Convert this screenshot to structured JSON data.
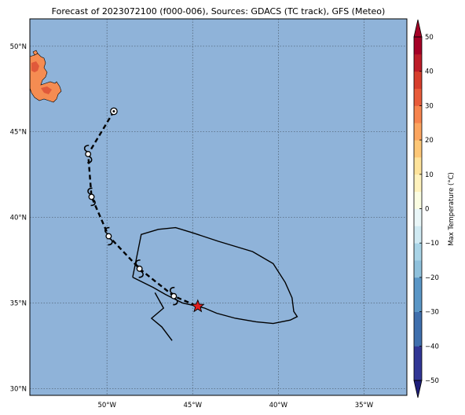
{
  "map": {
    "title": "Forecast of 2023072100 (f000-006), Sources: GDACS (TC track), GFS (Meteo)",
    "lat_ticks": [
      {
        "value": 50,
        "label": "50°N"
      },
      {
        "value": 45,
        "label": "45°N"
      },
      {
        "value": 40,
        "label": "40°N"
      },
      {
        "value": 35,
        "label": "35°N"
      },
      {
        "value": 30,
        "label": "30°N"
      }
    ],
    "lon_ticks": [
      {
        "value": -50,
        "label": "50°W"
      },
      {
        "value": -45,
        "label": "45°W"
      },
      {
        "value": -40,
        "label": "40°W"
      },
      {
        "value": -35,
        "label": "35°W"
      }
    ],
    "extent": {
      "lon_min": -54.5,
      "lon_max": -32.5,
      "lat_min": 29.6,
      "lat_max": 51.6
    },
    "colors": {
      "ocean": "#8fb3d9",
      "land_warm": "#f58c52",
      "land_hot": "#e0593a"
    },
    "track_points": [
      {
        "lon": -49.6,
        "lat": 46.2,
        "symbol": "circle"
      },
      {
        "lon": -51.1,
        "lat": 43.7,
        "symbol": "cyclone"
      },
      {
        "lon": -50.9,
        "lat": 41.2,
        "symbol": "cyclone"
      },
      {
        "lon": -49.9,
        "lat": 38.9,
        "symbol": "cyclone"
      },
      {
        "lon": -48.1,
        "lat": 37.0,
        "symbol": "cyclone"
      },
      {
        "lon": -46.1,
        "lat": 35.4,
        "symbol": "cyclone"
      },
      {
        "lon": -44.7,
        "lat": 34.8,
        "symbol": "star"
      }
    ],
    "forecast_area": [
      [
        -48.5,
        36.5
      ],
      [
        -48.0,
        39.0
      ],
      [
        -47.0,
        39.3
      ],
      [
        -46.0,
        39.4
      ],
      [
        -45.0,
        39.1
      ],
      [
        -43.5,
        38.6
      ],
      [
        -41.5,
        38.0
      ],
      [
        -40.3,
        37.3
      ],
      [
        -39.6,
        36.2
      ],
      [
        -39.2,
        35.3
      ],
      [
        -39.1,
        34.5
      ],
      [
        -38.9,
        34.2
      ],
      [
        -39.3,
        34.0
      ],
      [
        -40.3,
        33.8
      ],
      [
        -41.3,
        33.9
      ],
      [
        -42.5,
        34.1
      ],
      [
        -43.6,
        34.4
      ],
      [
        -44.3,
        34.7
      ],
      [
        -44.7,
        34.8
      ],
      [
        -45.6,
        35.0
      ],
      [
        -46.6,
        35.5
      ],
      [
        -47.3,
        35.9
      ],
      [
        -48.5,
        36.5
      ]
    ],
    "tail": [
      [
        -47.2,
        35.6
      ],
      [
        -46.7,
        34.7
      ],
      [
        -47.4,
        34.1
      ],
      [
        -46.8,
        33.6
      ],
      [
        -46.2,
        32.8
      ]
    ],
    "colorbar": {
      "label": "Max Temperature (°C)",
      "ticks": [
        {
          "value": 50,
          "label": "50"
        },
        {
          "value": 40,
          "label": "40"
        },
        {
          "value": 30,
          "label": "30"
        },
        {
          "value": 20,
          "label": "20"
        },
        {
          "value": 10,
          "label": "10"
        },
        {
          "value": 0,
          "label": "0"
        },
        {
          "value": -10,
          "label": "−10"
        },
        {
          "value": -20,
          "label": "−20"
        },
        {
          "value": -30,
          "label": "−30"
        },
        {
          "value": -40,
          "label": "−40"
        },
        {
          "value": -50,
          "label": "−50"
        }
      ],
      "bands": [
        {
          "from": -50,
          "to": -45,
          "color": "#313695"
        },
        {
          "from": -45,
          "to": -40,
          "color": "#313695"
        },
        {
          "from": -40,
          "to": -35,
          "color": "#3f6fad"
        },
        {
          "from": -35,
          "to": -30,
          "color": "#3f6fad"
        },
        {
          "from": -30,
          "to": -25,
          "color": "#5a96c6"
        },
        {
          "from": -25,
          "to": -20,
          "color": "#5a96c6"
        },
        {
          "from": -20,
          "to": -15,
          "color": "#8fc1dc"
        },
        {
          "from": -15,
          "to": -10,
          "color": "#a9d4e7"
        },
        {
          "from": -10,
          "to": -5,
          "color": "#d0eaf3"
        },
        {
          "from": -5,
          "to": 0,
          "color": "#e9f6f8"
        },
        {
          "from": 0,
          "to": 5,
          "color": "#fbfde2"
        },
        {
          "from": 5,
          "to": 10,
          "color": "#fff2bd"
        },
        {
          "from": 10,
          "to": 15,
          "color": "#fee39b"
        },
        {
          "from": 15,
          "to": 20,
          "color": "#fdc777"
        },
        {
          "from": 20,
          "to": 25,
          "color": "#fca55f"
        },
        {
          "from": 25,
          "to": 30,
          "color": "#f7844e"
        },
        {
          "from": 30,
          "to": 35,
          "color": "#e85b3a"
        },
        {
          "from": 35,
          "to": 40,
          "color": "#d73e2c"
        },
        {
          "from": 40,
          "to": 45,
          "color": "#bd1c28"
        },
        {
          "from": 45,
          "to": 50,
          "color": "#a50026"
        }
      ],
      "over_color": "#a50026",
      "under_color": "#1e1e7a"
    }
  }
}
